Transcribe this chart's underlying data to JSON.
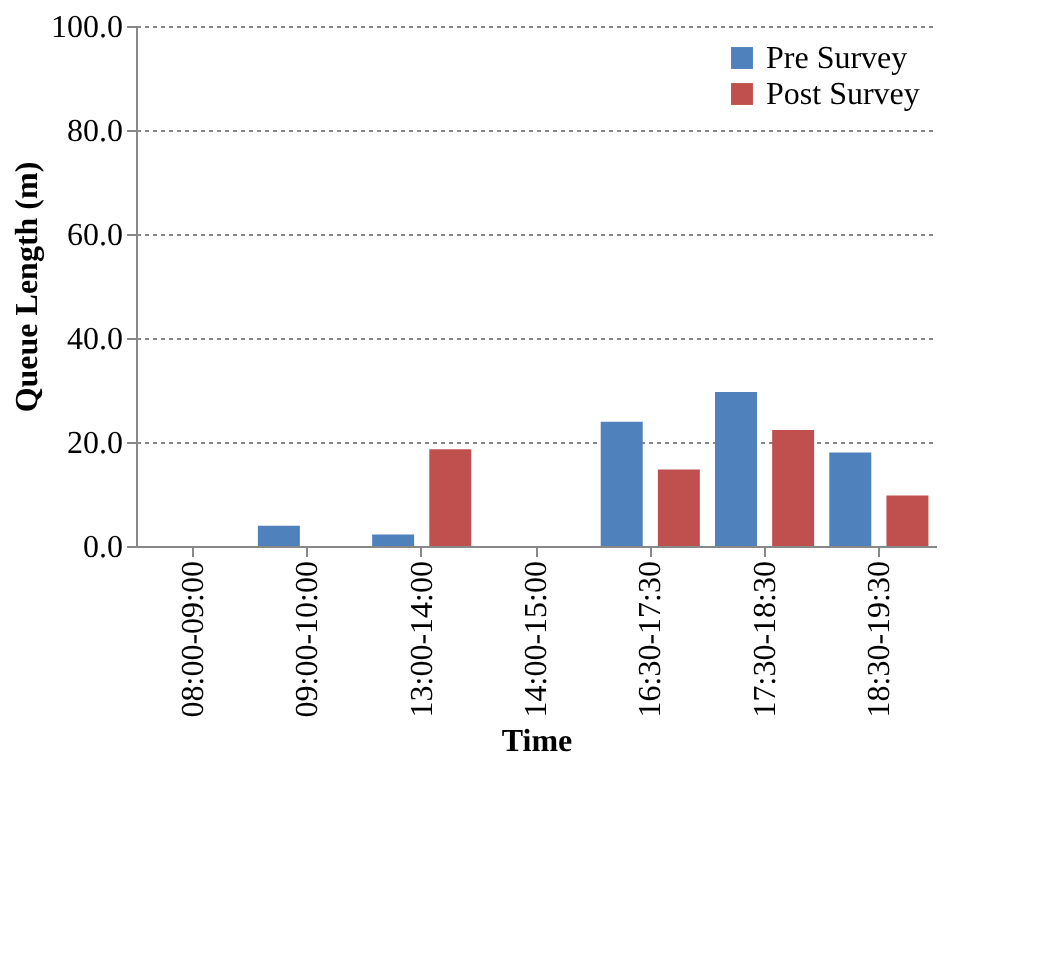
{
  "chart_data": {
    "type": "bar",
    "xlabel": "Time",
    "ylabel": "Queue Length (m)",
    "categories": [
      "08:00-09:00",
      "09:00-10:00",
      "13:00-14:00",
      "14:00-15:00",
      "16:30-17:30",
      "17:30-18:30",
      "18:30-19:30"
    ],
    "series": [
      {
        "name": "Pre Survey",
        "color": "#4f81bd",
        "values": [
          0,
          3.9,
          2.2,
          0,
          23.9,
          29.6,
          18.0
        ]
      },
      {
        "name": "Post Survey",
        "color": "#c0504d",
        "values": [
          0,
          0,
          18.6,
          0,
          14.7,
          22.3,
          9.7
        ]
      }
    ],
    "ylim": [
      0,
      100
    ],
    "yticks": [
      {
        "value": 0,
        "label": "0.0"
      },
      {
        "value": 20,
        "label": "20.0"
      },
      {
        "value": 40,
        "label": "40.0"
      },
      {
        "value": 60,
        "label": "60.0"
      },
      {
        "value": 80,
        "label": "80.0"
      },
      {
        "value": 100,
        "label": "100.0"
      }
    ],
    "grid": "y",
    "legend": "top right"
  }
}
